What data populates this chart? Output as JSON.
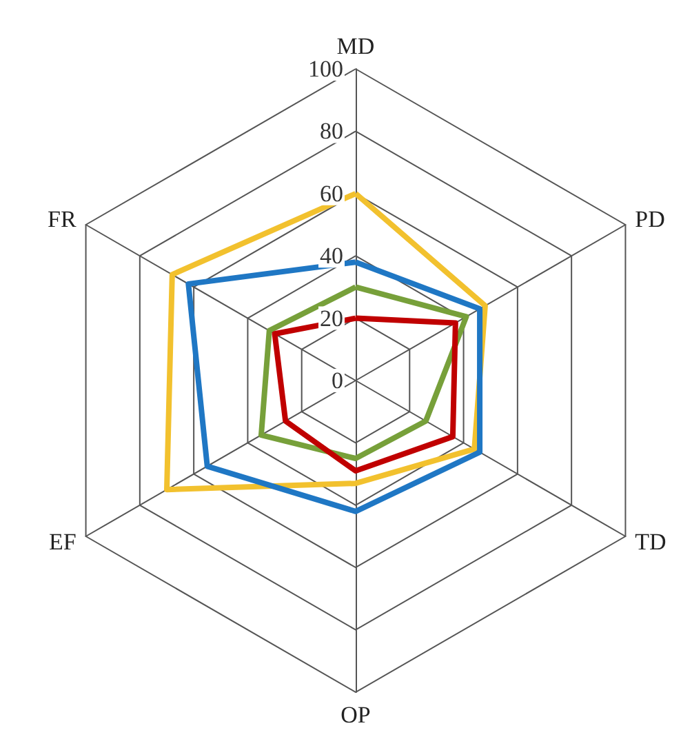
{
  "chart_data": {
    "type": "radar",
    "categories": [
      "MD",
      "PD",
      "TD",
      "OP",
      "EF",
      "FR"
    ],
    "series": [
      {
        "color": "#f2c12e",
        "values": [
          60,
          48,
          44,
          33,
          70,
          68
        ]
      },
      {
        "color": "#1f77c4",
        "values": [
          38,
          46,
          46,
          42,
          55,
          62
        ]
      },
      {
        "color": "#77a03a",
        "values": [
          30,
          41,
          26,
          25,
          35,
          32
        ]
      },
      {
        "color": "#c00000",
        "values": [
          20,
          37,
          36,
          29,
          26,
          30
        ]
      }
    ],
    "ylim": [
      0,
      100
    ],
    "yticks": [
      0,
      20,
      40,
      60,
      80,
      100
    ],
    "grid": true,
    "marker": "none"
  }
}
